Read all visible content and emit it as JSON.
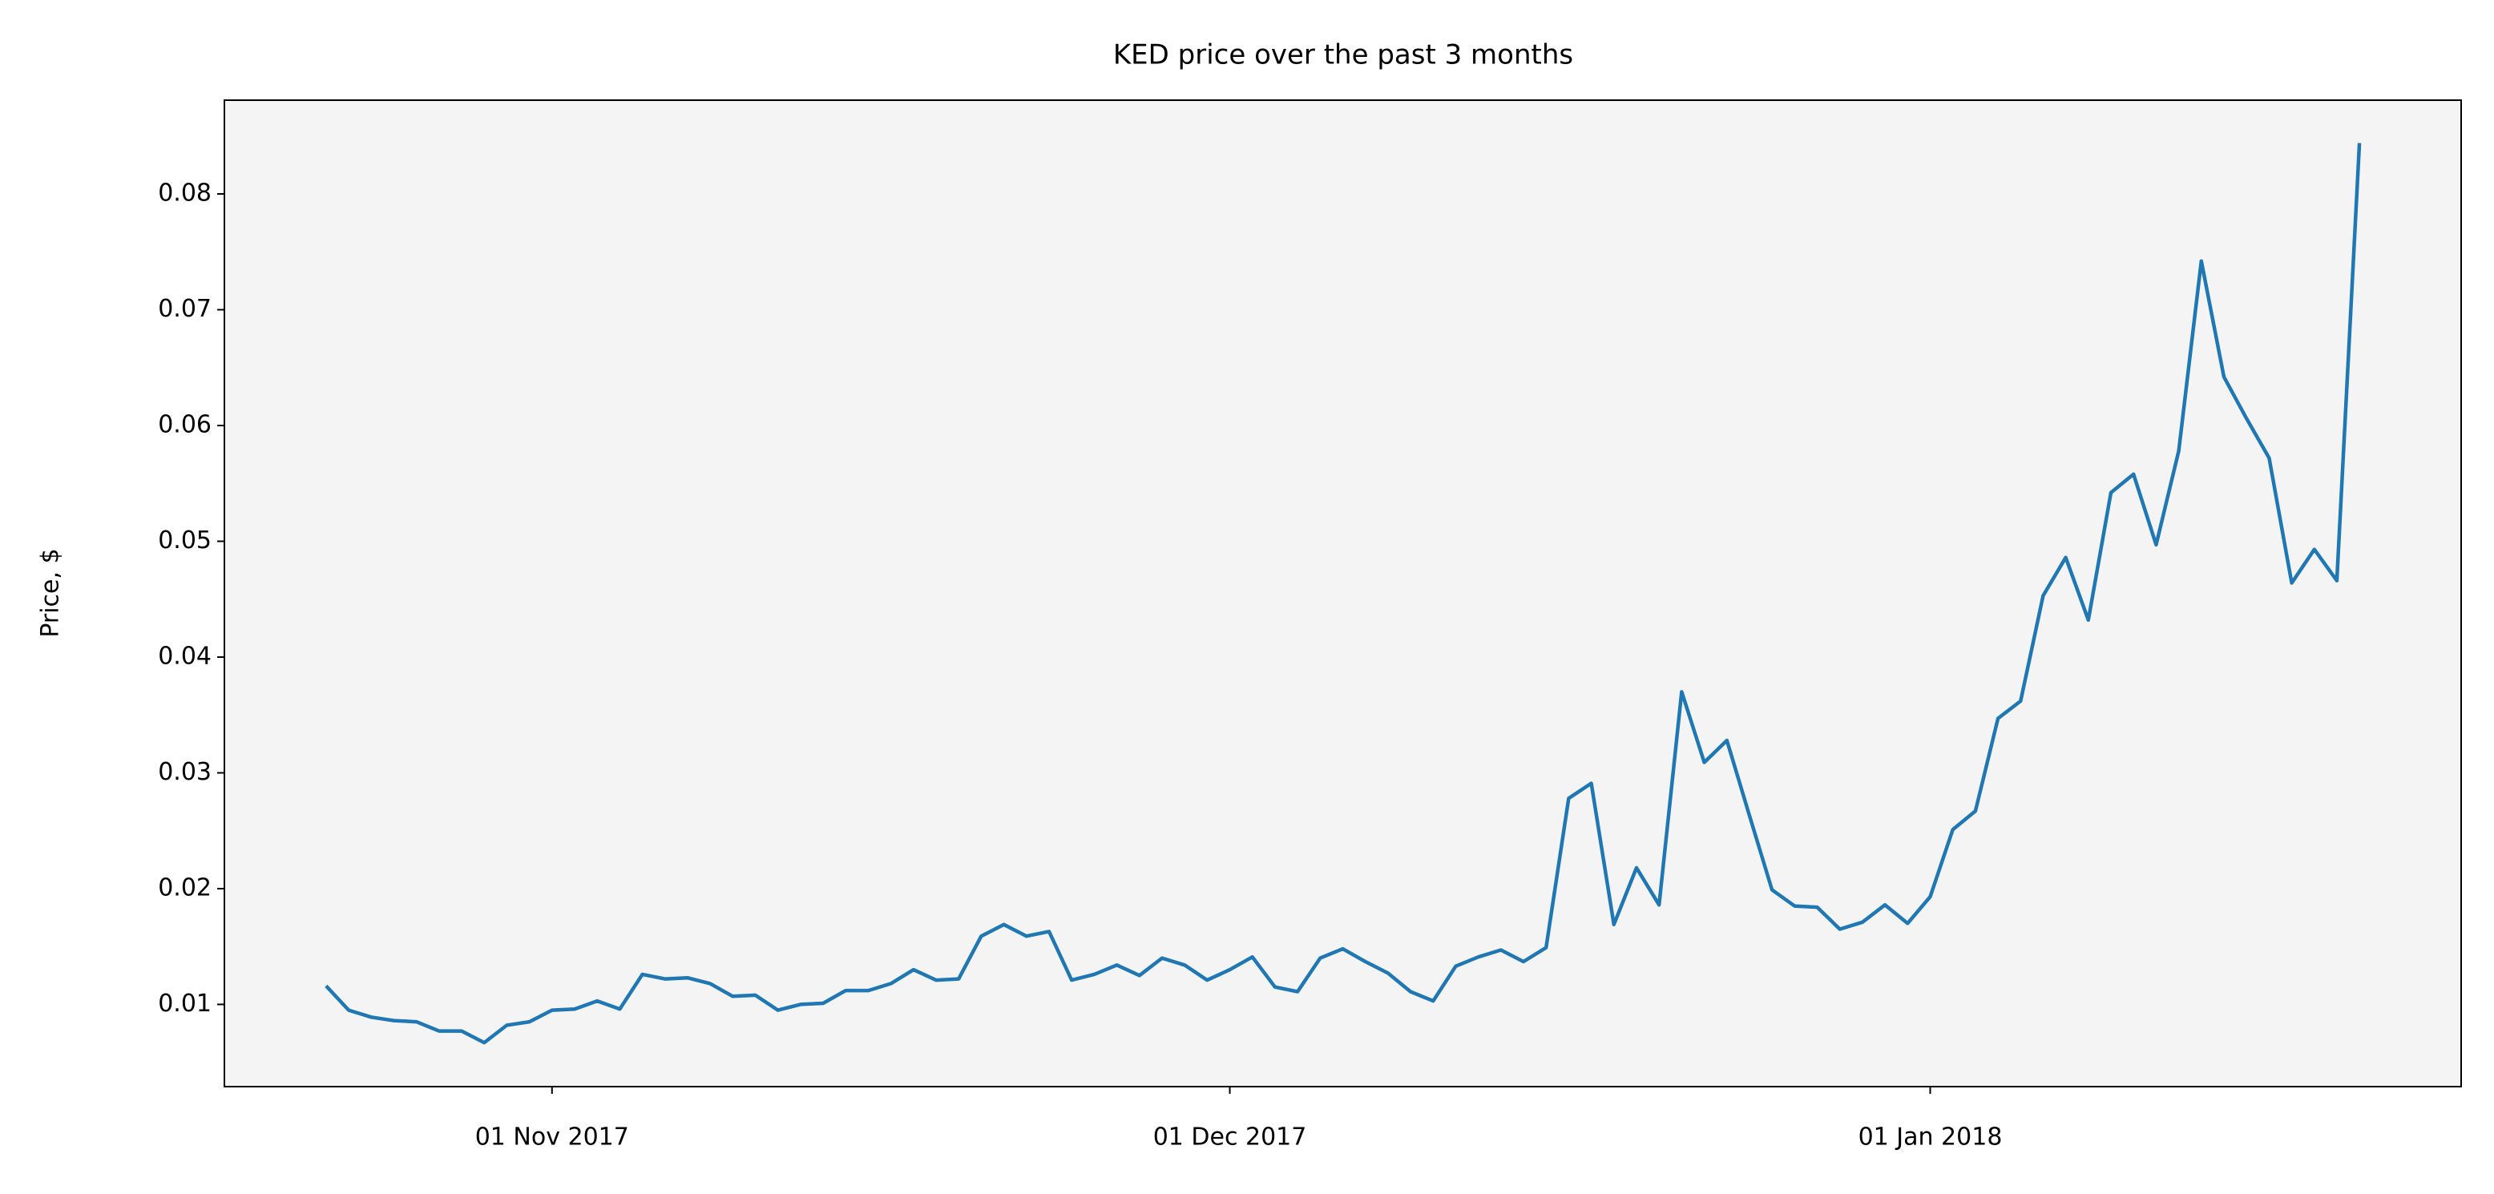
{
  "chart_data": {
    "type": "line",
    "title": "KED price over the past 3 months",
    "ylabel": "Price, $",
    "x": [
      "2017-10-22",
      "2017-10-23",
      "2017-10-24",
      "2017-10-25",
      "2017-10-26",
      "2017-10-27",
      "2017-10-28",
      "2017-10-29",
      "2017-10-30",
      "2017-10-31",
      "2017-11-01",
      "2017-11-02",
      "2017-11-03",
      "2017-11-04",
      "2017-11-05",
      "2017-11-06",
      "2017-11-07",
      "2017-11-08",
      "2017-11-09",
      "2017-11-10",
      "2017-11-11",
      "2017-11-12",
      "2017-11-13",
      "2017-11-14",
      "2017-11-15",
      "2017-11-16",
      "2017-11-17",
      "2017-11-18",
      "2017-11-19",
      "2017-11-20",
      "2017-11-21",
      "2017-11-22",
      "2017-11-23",
      "2017-11-24",
      "2017-11-25",
      "2017-11-26",
      "2017-11-27",
      "2017-11-28",
      "2017-11-29",
      "2017-11-30",
      "2017-12-01",
      "2017-12-02",
      "2017-12-03",
      "2017-12-04",
      "2017-12-05",
      "2017-12-06",
      "2017-12-07",
      "2017-12-08",
      "2017-12-09",
      "2017-12-10",
      "2017-12-11",
      "2017-12-12",
      "2017-12-13",
      "2017-12-14",
      "2017-12-15",
      "2017-12-16",
      "2017-12-17",
      "2017-12-18",
      "2017-12-19",
      "2017-12-20",
      "2017-12-21",
      "2017-12-22",
      "2017-12-23",
      "2017-12-24",
      "2017-12-25",
      "2017-12-26",
      "2017-12-27",
      "2017-12-28",
      "2017-12-29",
      "2017-12-30",
      "2017-12-31",
      "2018-01-01",
      "2018-01-02",
      "2018-01-03",
      "2018-01-04",
      "2018-01-05",
      "2018-01-06",
      "2018-01-07",
      "2018-01-08",
      "2018-01-09",
      "2018-01-10",
      "2018-01-11",
      "2018-01-12",
      "2018-01-13",
      "2018-01-14",
      "2018-01-15",
      "2018-01-16",
      "2018-01-17",
      "2018-01-18",
      "2018-01-19",
      "2018-01-20"
    ],
    "series": [
      {
        "color": "#1f77b4",
        "values": [
          0.0116,
          0.0095,
          0.0089,
          0.0086,
          0.0085,
          0.0077,
          0.0077,
          0.0067,
          0.0082,
          0.0085,
          0.0095,
          0.0096,
          0.0103,
          0.0096,
          0.0126,
          0.0122,
          0.0123,
          0.0118,
          0.0107,
          0.0108,
          0.0095,
          0.01,
          0.0101,
          0.0112,
          0.0112,
          0.0118,
          0.013,
          0.0121,
          0.0122,
          0.0159,
          0.0169,
          0.0159,
          0.0163,
          0.0121,
          0.0126,
          0.0134,
          0.0125,
          0.014,
          0.0134,
          0.0121,
          0.013,
          0.0141,
          0.0115,
          0.0111,
          0.014,
          0.0148,
          0.0137,
          0.0127,
          0.0111,
          0.0103,
          0.0133,
          0.0141,
          0.0147,
          0.0137,
          0.0149,
          0.0278,
          0.0291,
          0.0169,
          0.0218,
          0.0186,
          0.037,
          0.0309,
          0.0328,
          0.0263,
          0.0199,
          0.0185,
          0.0184,
          0.0165,
          0.0171,
          0.0186,
          0.017,
          0.0193,
          0.0251,
          0.0267,
          0.0347,
          0.0362,
          0.0453,
          0.0486,
          0.0432,
          0.0542,
          0.0558,
          0.0497,
          0.0578,
          0.0742,
          0.0642,
          0.0606,
          0.0572,
          0.0464,
          0.0493,
          0.0466,
          0.0844
        ]
      }
    ],
    "xlim": [
      "2017-10-17T12:00",
      "2018-01-24T12:00"
    ],
    "xticks": [
      {
        "value": "2017-11-01",
        "label": "01 Nov 2017"
      },
      {
        "value": "2017-12-01",
        "label": "01 Dec 2017"
      },
      {
        "value": "2018-01-01",
        "label": "01 Jan 2018"
      }
    ],
    "ylim": [
      0.0029,
      0.0881
    ],
    "yticks": [
      0.01,
      0.02,
      0.03,
      0.04,
      0.05,
      0.06,
      0.07,
      0.08
    ],
    "grid": false
  }
}
